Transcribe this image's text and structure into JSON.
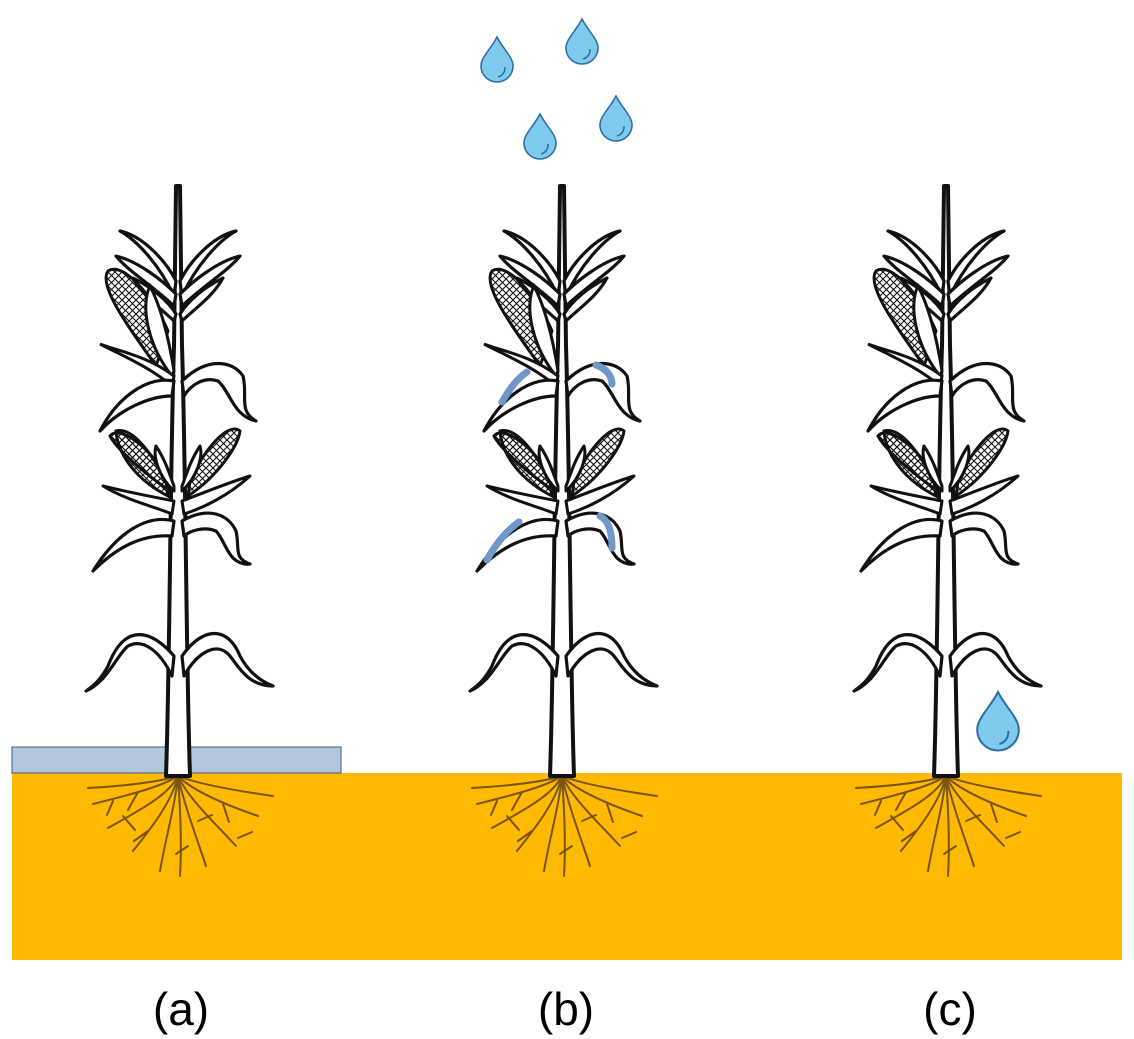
{
  "figure": {
    "captions": [
      "(a)",
      "(b)",
      "(c)"
    ],
    "panels": [
      {
        "id": "a",
        "plant": "corn-plant",
        "extra": "standing-water-layer"
      },
      {
        "id": "b",
        "plant": "corn-plant",
        "extra": "falling-raindrops",
        "highlighted_leaves": 4,
        "raindrops": 4
      },
      {
        "id": "c",
        "plant": "corn-plant",
        "extra": "single-water-drop",
        "raindrops": 1
      }
    ]
  },
  "colors": {
    "soil": "#FFB900",
    "water_layer": "#B3C6DC",
    "water_layer_border": "#3D5A8A",
    "drop_fill": "#7FCBEE",
    "drop_stroke": "#2F6FA8",
    "leaf_highlight": "#6F97C8",
    "root": "#7A5510",
    "outline": "#111111"
  },
  "icons": [
    "corn-plant-icon",
    "water-drop-icon",
    "corn-cob-icon",
    "roots-icon"
  ]
}
